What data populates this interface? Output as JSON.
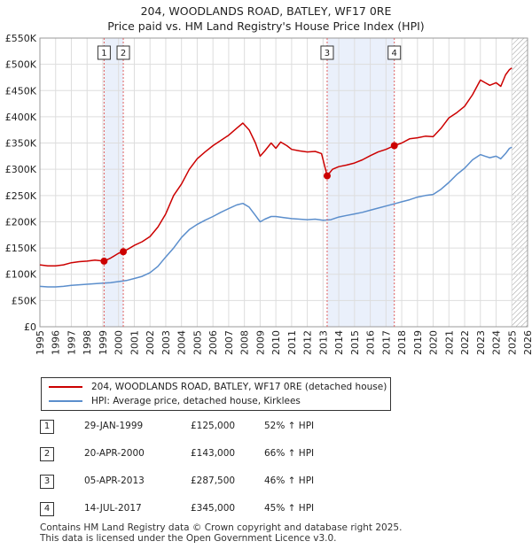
{
  "title_line1": "204, WOODLANDS ROAD, BATLEY, WF17 0RE",
  "title_line2": "Price paid vs. HM Land Registry's House Price Index (HPI)",
  "chart_data": {
    "type": "line",
    "title": "204, WOODLANDS ROAD, BATLEY, WF17 0RE — Price paid vs. HM Land Registry's House Price Index (HPI)",
    "xlabel": "",
    "ylabel": "",
    "xlim": [
      1995,
      2026
    ],
    "ylim": [
      0,
      550000
    ],
    "grid": true,
    "y_ticks": [
      0,
      50000,
      100000,
      150000,
      200000,
      250000,
      300000,
      350000,
      400000,
      450000,
      500000,
      550000
    ],
    "y_tick_labels": [
      "£0",
      "£50K",
      "£100K",
      "£150K",
      "£200K",
      "£250K",
      "£300K",
      "£350K",
      "£400K",
      "£450K",
      "£500K",
      "£550K"
    ],
    "x_ticks": [
      1995,
      1996,
      1997,
      1998,
      1999,
      2000,
      2001,
      2002,
      2003,
      2004,
      2005,
      2006,
      2007,
      2008,
      2009,
      2010,
      2011,
      2012,
      2013,
      2014,
      2015,
      2016,
      2017,
      2018,
      2019,
      2020,
      2021,
      2022,
      2023,
      2024,
      2025,
      2026
    ],
    "x_tick_labels": [
      "1995",
      "1996",
      "1997",
      "1998",
      "1999",
      "2000",
      "2001",
      "2002",
      "2003",
      "2004",
      "2005",
      "2006",
      "2007",
      "2008",
      "2009",
      "2010",
      "2011",
      "2012",
      "2013",
      "2014",
      "2015",
      "2016",
      "2017",
      "2018",
      "2019",
      "2020",
      "2021",
      "2022",
      "2023",
      "2024",
      "2025",
      "2026"
    ],
    "series": [
      {
        "name": "204, WOODLANDS ROAD, BATLEY, WF17 0RE (detached house)",
        "color": "#cc0000",
        "x": [
          1995.0,
          1995.5,
          1996.0,
          1996.5,
          1997.0,
          1997.5,
          1998.0,
          1998.5,
          1999.08,
          1999.5,
          2000.0,
          2000.3,
          2000.6,
          2001.0,
          2001.5,
          2002.0,
          2002.5,
          2003.0,
          2003.5,
          2004.0,
          2004.5,
          2005.0,
          2005.5,
          2006.0,
          2006.5,
          2007.0,
          2007.5,
          2007.9,
          2008.3,
          2008.7,
          2009.0,
          2009.3,
          2009.7,
          2010.0,
          2010.3,
          2010.7,
          2011.0,
          2011.5,
          2012.0,
          2012.5,
          2012.9,
          2013.26,
          2013.6,
          2014.0,
          2014.5,
          2015.0,
          2015.5,
          2016.0,
          2016.5,
          2017.0,
          2017.53,
          2018.0,
          2018.5,
          2019.0,
          2019.5,
          2020.0,
          2020.5,
          2021.0,
          2021.5,
          2022.0,
          2022.5,
          2023.0,
          2023.3,
          2023.6,
          2024.0,
          2024.3,
          2024.6,
          2024.85,
          2025.0
        ],
        "values": [
          118000,
          116000,
          116000,
          118000,
          122000,
          124000,
          125000,
          127000,
          125000,
          131000,
          140000,
          143000,
          148000,
          155000,
          162000,
          172000,
          190000,
          215000,
          250000,
          272000,
          300000,
          320000,
          333000,
          345000,
          355000,
          365000,
          378000,
          388000,
          375000,
          350000,
          325000,
          335000,
          350000,
          340000,
          352000,
          345000,
          338000,
          335000,
          333000,
          334000,
          330000,
          287500,
          300000,
          305000,
          308000,
          312000,
          318000,
          326000,
          333000,
          338000,
          345000,
          350000,
          358000,
          360000,
          363000,
          362000,
          378000,
          398000,
          408000,
          420000,
          442000,
          470000,
          465000,
          460000,
          465000,
          458000,
          480000,
          490000,
          493000
        ]
      },
      {
        "name": "HPI: Average price, detached house, Kirklees",
        "color": "#5b8ecc",
        "x": [
          1995.0,
          1995.5,
          1996.0,
          1996.5,
          1997.0,
          1997.5,
          1998.0,
          1998.5,
          1999.0,
          1999.5,
          2000.0,
          2000.5,
          2001.0,
          2001.5,
          2002.0,
          2002.5,
          2003.0,
          2003.5,
          2004.0,
          2004.5,
          2005.0,
          2005.5,
          2006.0,
          2006.5,
          2007.0,
          2007.5,
          2007.9,
          2008.3,
          2008.7,
          2009.0,
          2009.3,
          2009.7,
          2010.0,
          2010.5,
          2011.0,
          2011.5,
          2012.0,
          2012.5,
          2013.0,
          2013.5,
          2014.0,
          2014.5,
          2015.0,
          2015.5,
          2016.0,
          2016.5,
          2017.0,
          2017.5,
          2018.0,
          2018.5,
          2019.0,
          2019.5,
          2020.0,
          2020.5,
          2021.0,
          2021.5,
          2022.0,
          2022.5,
          2023.0,
          2023.3,
          2023.6,
          2024.0,
          2024.3,
          2024.6,
          2024.85,
          2025.0
        ],
        "values": [
          77000,
          76000,
          76000,
          77000,
          79000,
          80000,
          81000,
          82000,
          83000,
          84000,
          86000,
          88000,
          92000,
          96000,
          103000,
          115000,
          133000,
          150000,
          170000,
          185000,
          195000,
          203000,
          210000,
          218000,
          225000,
          232000,
          235000,
          228000,
          212000,
          200000,
          205000,
          210000,
          210000,
          208000,
          206000,
          205000,
          204000,
          205000,
          203000,
          204000,
          209000,
          212000,
          215000,
          218000,
          222000,
          226000,
          230000,
          234000,
          238000,
          242000,
          247000,
          250000,
          252000,
          262000,
          275000,
          290000,
          302000,
          318000,
          328000,
          325000,
          322000,
          325000,
          320000,
          330000,
          340000,
          342000
        ]
      }
    ],
    "sale_markers": [
      {
        "label": "1",
        "x": 1999.08,
        "value": 125000
      },
      {
        "label": "2",
        "x": 2000.3,
        "value": 143000
      },
      {
        "label": "3",
        "x": 2013.26,
        "value": 287500
      },
      {
        "label": "4",
        "x": 2017.53,
        "value": 345000
      }
    ],
    "shaded_regions": [
      {
        "from": 1999.08,
        "to": 2000.3
      },
      {
        "from": 2013.26,
        "to": 2017.53
      }
    ],
    "future_hatch_from": 2025.0
  },
  "legend": {
    "line1": "204, WOODLANDS ROAD, BATLEY, WF17 0RE (detached house)",
    "line2": "HPI: Average price, detached house, Kirklees",
    "color1": "#cc0000",
    "color2": "#5b8ecc"
  },
  "sales": [
    {
      "num": "1",
      "date": "29-JAN-1999",
      "price": "£125,000",
      "hpi": "52% ↑ HPI"
    },
    {
      "num": "2",
      "date": "20-APR-2000",
      "price": "£143,000",
      "hpi": "66% ↑ HPI"
    },
    {
      "num": "3",
      "date": "05-APR-2013",
      "price": "£287,500",
      "hpi": "46% ↑ HPI"
    },
    {
      "num": "4",
      "date": "14-JUL-2017",
      "price": "£345,000",
      "hpi": "45% ↑ HPI"
    }
  ],
  "footer": {
    "line1": "Contains HM Land Registry data © Crown copyright and database right 2025.",
    "line2": "This data is licensed under the Open Government Licence v3.0."
  }
}
